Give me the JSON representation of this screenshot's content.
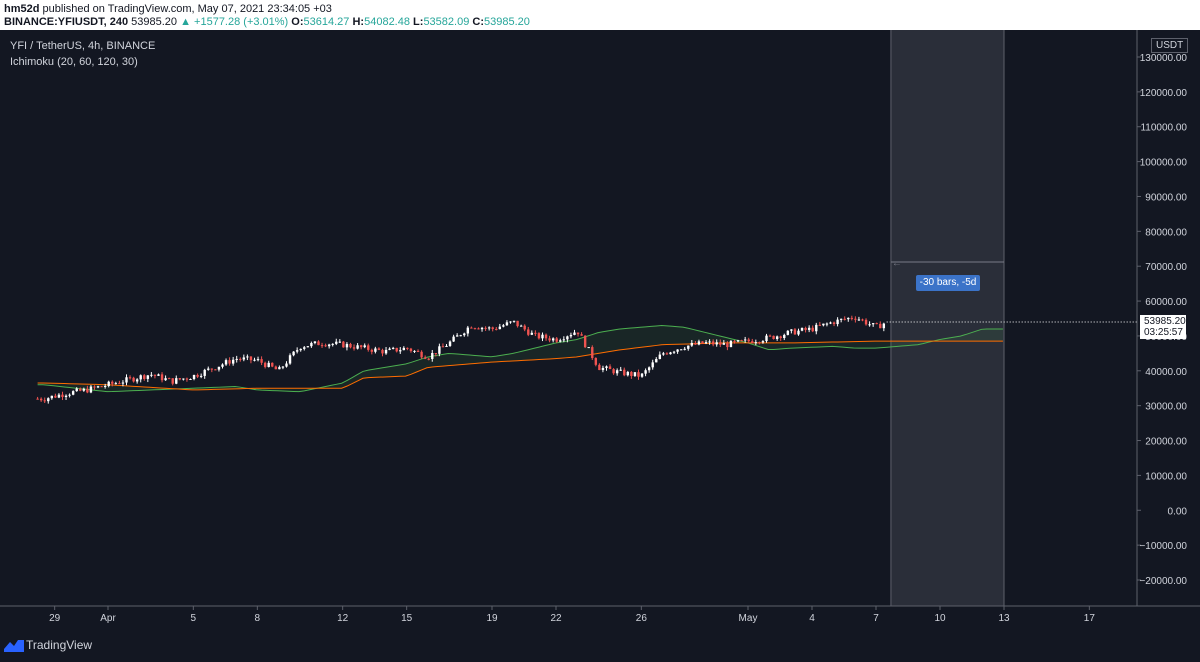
{
  "header": {
    "publisher": "hm52d",
    "published_text": "published on TradingView.com, May 07, 2021 23:34:05 +03",
    "symbol": "BINANCE:YFIUSDT, 240",
    "last": "53985.20",
    "change": "▲ +1577.28 (+3.01%)",
    "o_label": "O:",
    "o": "53614.27",
    "h_label": "H:",
    "h": "54082.48",
    "l_label": "L:",
    "l": "53582.09",
    "c_label": "C:",
    "c": "53985.20"
  },
  "legend": {
    "pair": "YFI / TetherUS, 4h, BINANCE",
    "indicator": "Ichimoku (20, 60, 120, 30)"
  },
  "axis": {
    "unit": "USDT",
    "current_price": "53985.20",
    "countdown": "03:25:57"
  },
  "range_label": "-30 bars, -5d",
  "footer_brand": "TradingView",
  "colors": {
    "background": "#131722",
    "up": "#ffffff",
    "down": "#ef5350",
    "senkou_a": "#4caf50",
    "senkou_b": "#ff6d00",
    "selection": "#2a2e39"
  },
  "chart_data": {
    "type": "candlestick",
    "ylim": [
      -25000,
      135000
    ],
    "y_ticks": [
      "130000.00",
      "120000.00",
      "110000.00",
      "100000.00",
      "90000.00",
      "80000.00",
      "70000.00",
      "60000.00",
      "50000.00",
      "40000.00",
      "30000.00",
      "20000.00",
      "10000.00",
      "0.00",
      "−10000.00",
      "−20000.00"
    ],
    "y_tick_values": [
      130000,
      120000,
      110000,
      100000,
      90000,
      80000,
      70000,
      60000,
      50000,
      40000,
      30000,
      20000,
      10000,
      0,
      -10000,
      -20000
    ],
    "x_ticks": [
      "29",
      "Apr",
      "5",
      "8",
      "12",
      "15",
      "19",
      "22",
      "26",
      "May",
      "4",
      "7",
      "10",
      "13",
      "17"
    ],
    "x_tick_days": [
      -2.5,
      0,
      4,
      7,
      11,
      14,
      18,
      21,
      25,
      30,
      33,
      36,
      39,
      42,
      46
    ],
    "close_series": {
      "day": [
        -3,
        -2,
        -1,
        0,
        1,
        2,
        3,
        4,
        5,
        6,
        7,
        8,
        9,
        10,
        11,
        12,
        13,
        14,
        15,
        16,
        17,
        18,
        19,
        20,
        21,
        22,
        23,
        24,
        25,
        26,
        27,
        28,
        29,
        30,
        31,
        32,
        33,
        34,
        35,
        36,
        36.5
      ],
      "price": [
        32000,
        33500,
        34500,
        36000,
        37500,
        39000,
        37000,
        38500,
        41000,
        43500,
        43000,
        40000,
        47000,
        48000,
        47500,
        46500,
        45500,
        46500,
        44000,
        48000,
        53000,
        52000,
        54000,
        50000,
        49000,
        51500,
        41000,
        39500,
        38500,
        45000,
        47000,
        48000,
        47500,
        48500,
        49500,
        51000,
        52000,
        54000,
        55500,
        52500,
        53985
      ]
    },
    "senkou_a": {
      "day": [
        -3,
        0,
        4,
        6,
        7,
        9,
        11,
        12,
        14,
        15,
        16,
        17,
        18,
        19,
        21,
        22,
        23,
        24,
        26,
        27,
        30,
        31,
        32,
        34,
        35,
        36,
        38,
        39,
        40,
        41,
        42
      ],
      "value": [
        36000,
        34000,
        35000,
        35500,
        34500,
        34000,
        36500,
        40000,
        42000,
        44000,
        45000,
        44500,
        44000,
        45000,
        48000,
        49000,
        51000,
        52000,
        53000,
        52500,
        48000,
        46000,
        46500,
        47000,
        46500,
        46500,
        47500,
        49000,
        50000,
        52000,
        52000
      ]
    },
    "senkou_b": {
      "day": [
        -3,
        0,
        4,
        7,
        11,
        12,
        14,
        15,
        17,
        18,
        21,
        22,
        23,
        24,
        26,
        29,
        32,
        36,
        42
      ],
      "value": [
        36500,
        36000,
        34500,
        35000,
        35000,
        38000,
        38500,
        41000,
        42000,
        42500,
        43500,
        44000,
        45000,
        46000,
        47500,
        48000,
        48000,
        48500,
        48500
      ]
    },
    "projection_start_day": 36.7,
    "projection_end_day": 42
  }
}
